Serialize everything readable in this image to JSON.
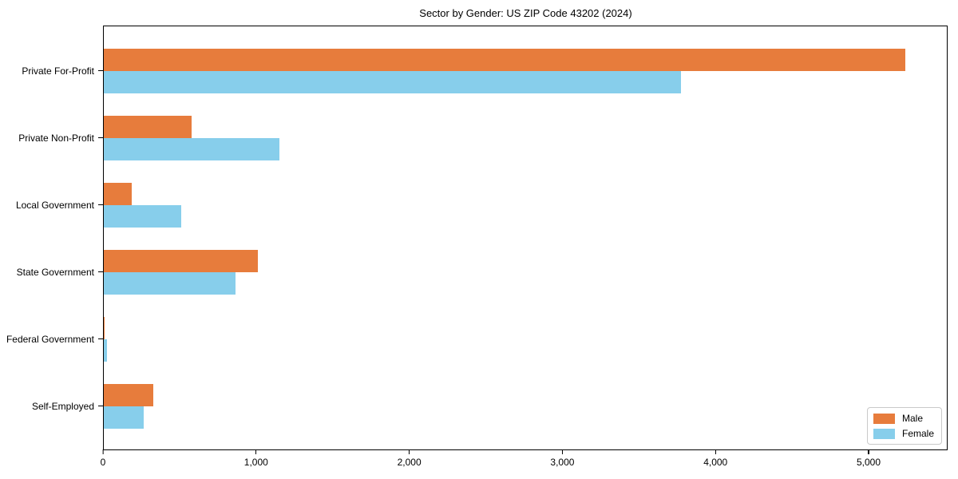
{
  "chart_data": {
    "type": "bar",
    "orientation": "horizontal",
    "title": "Sector by Gender: US ZIP Code 43202 (2024)",
    "categories": [
      "Private For-Profit",
      "Private Non-Profit",
      "Local Government",
      "State Government",
      "Federal Government",
      "Self-Employed"
    ],
    "series": [
      {
        "name": "Male",
        "color": "#e77c3c",
        "values": [
          5245,
          574,
          183,
          1007,
          5,
          322
        ]
      },
      {
        "name": "Female",
        "color": "#87ceeb",
        "values": [
          3778,
          1148,
          505,
          861,
          22,
          261
        ]
      }
    ],
    "xlabel": "",
    "ylabel": "",
    "xlim": [
      0,
      5516
    ],
    "xticks": [
      {
        "value": 0,
        "label": "0"
      },
      {
        "value": 1000,
        "label": "1,000"
      },
      {
        "value": 2000,
        "label": "2,000"
      },
      {
        "value": 3000,
        "label": "3,000"
      },
      {
        "value": 4000,
        "label": "4,000"
      },
      {
        "value": 5000,
        "label": "5,000"
      }
    ],
    "grid": false,
    "legend_position": "lower right",
    "frame_color": "#000000",
    "background_color": "#ffffff"
  }
}
